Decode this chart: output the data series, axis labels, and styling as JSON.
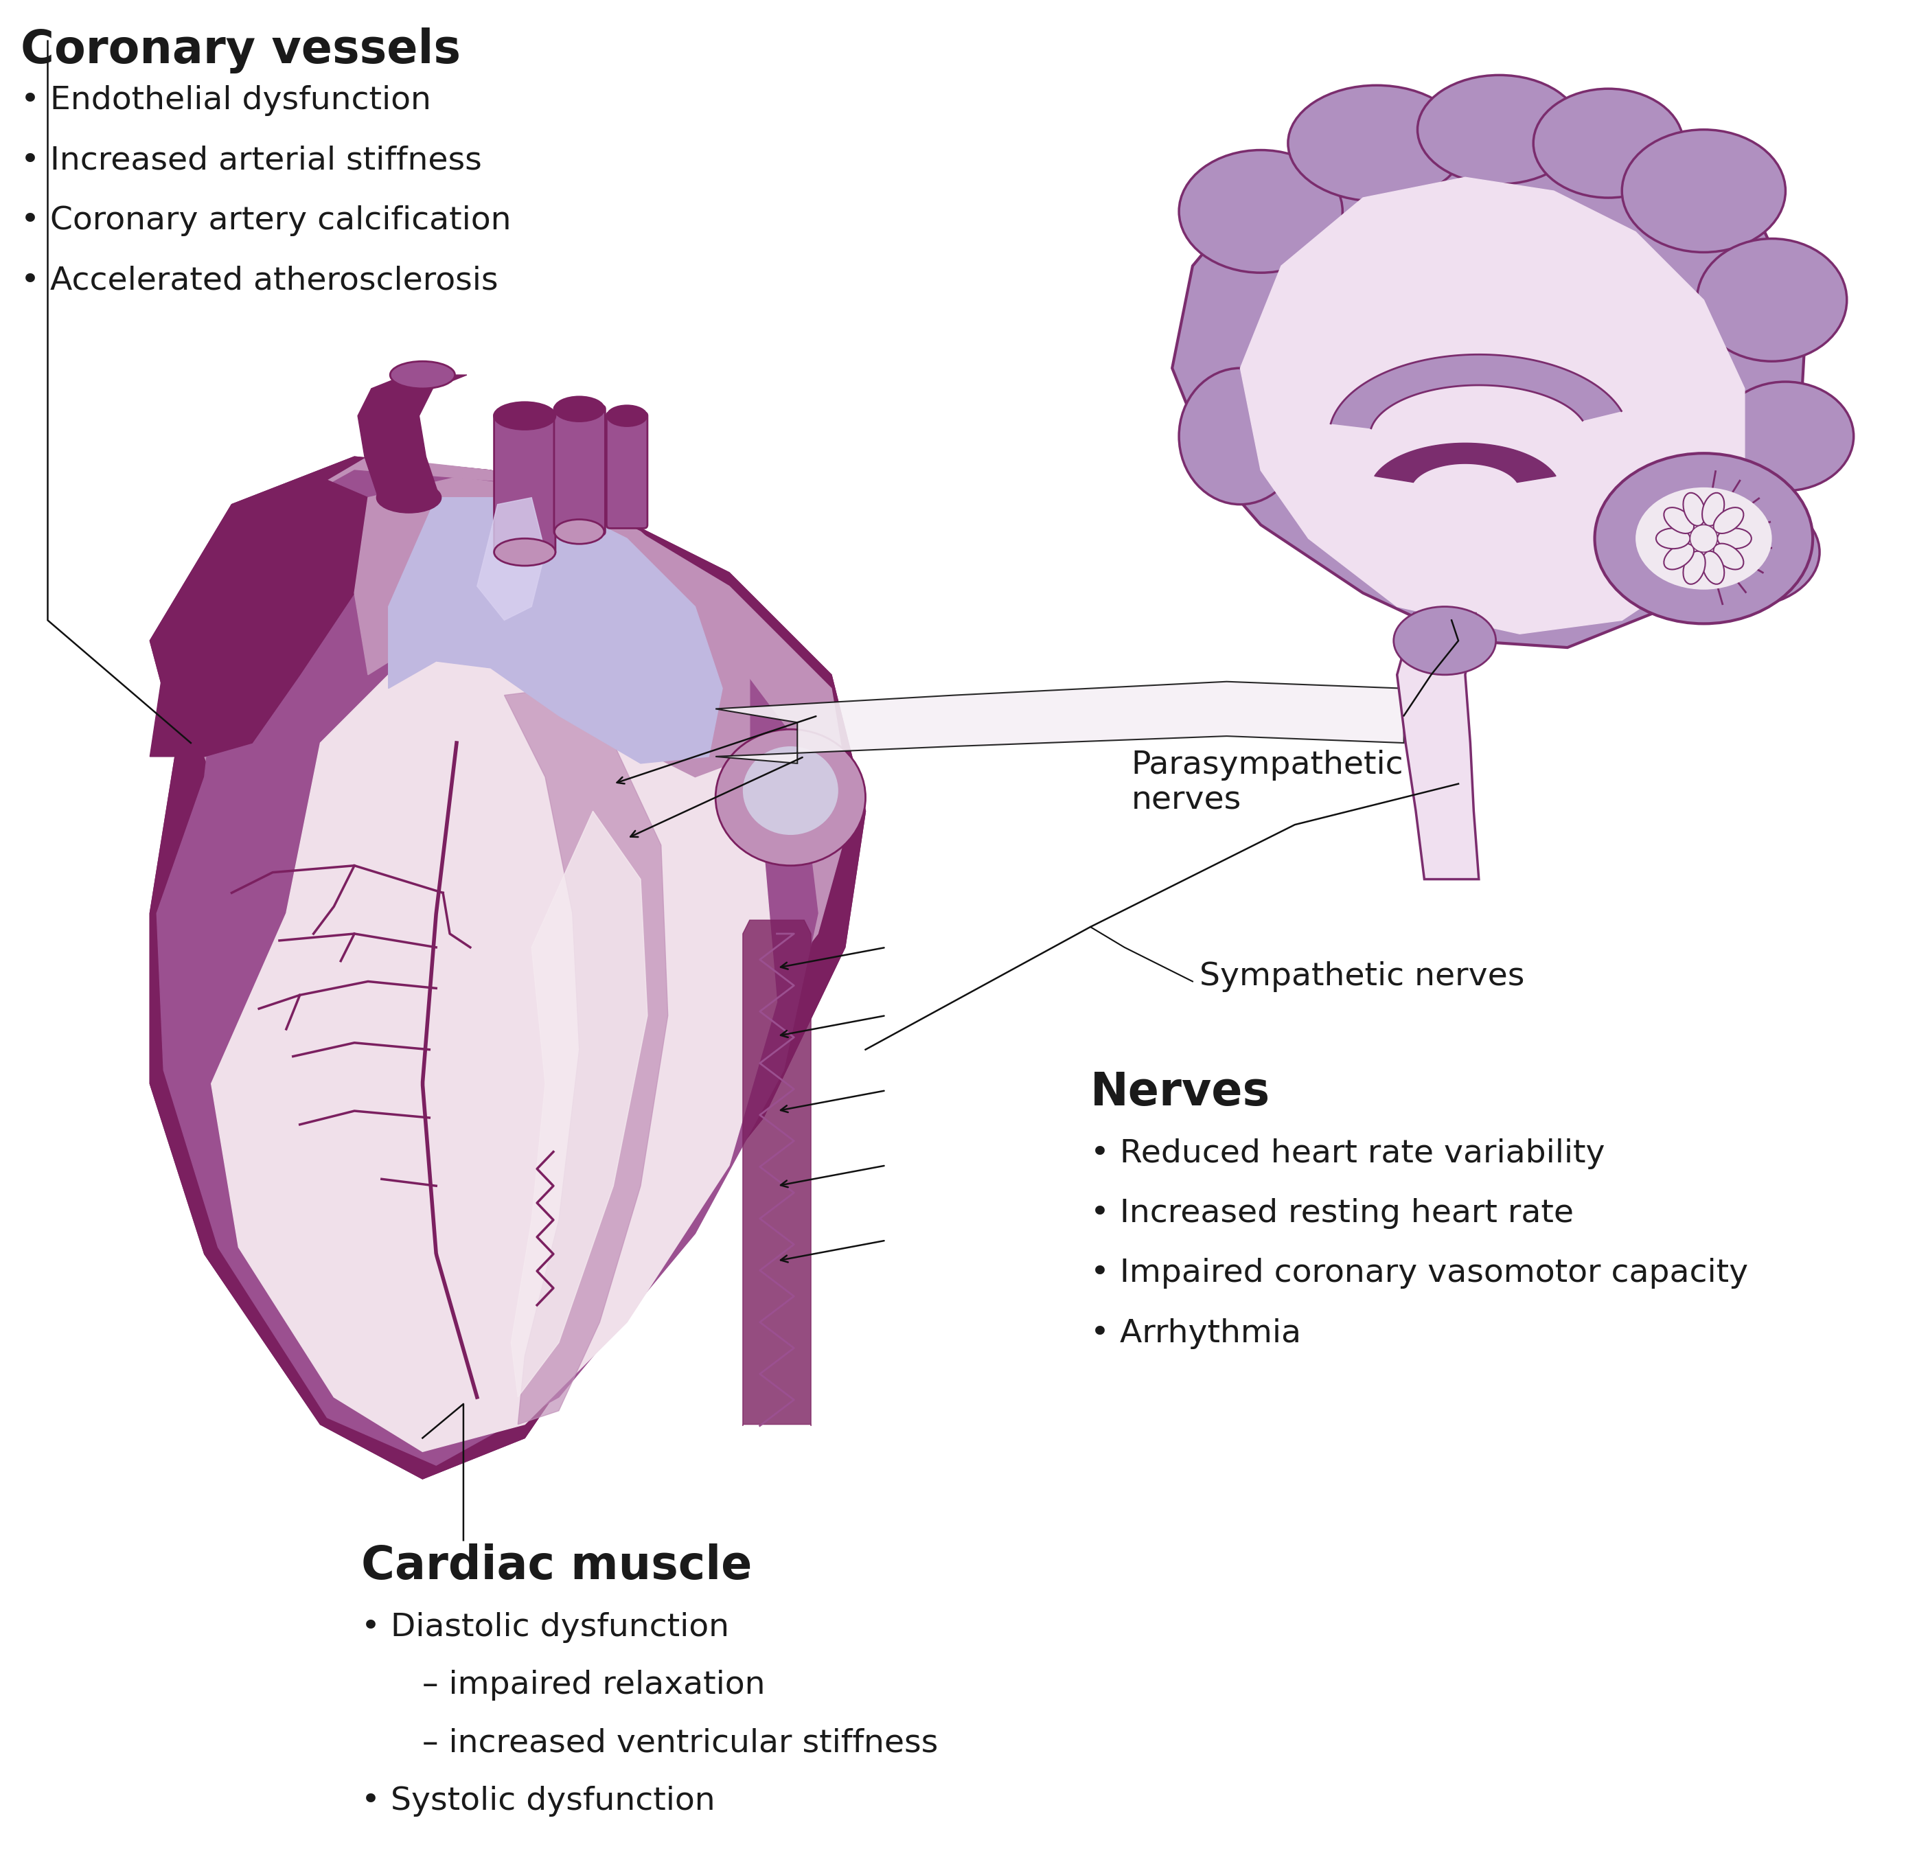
{
  "background_color": "#ffffff",
  "coronary_vessels_title": "Coronary vessels",
  "coronary_vessels_bullets": [
    "Endothelial dysfunction",
    "Increased arterial stiffness",
    "Coronary artery calcification",
    "Accelerated atherosclerosis"
  ],
  "cardiac_muscle_title": "Cardiac muscle",
  "cardiac_muscle_bullets": [
    "Diastolic dysfunction",
    "– impaired relaxation",
    "– increased ventricular stiffness",
    "Systolic dysfunction"
  ],
  "nerves_title": "Nerves",
  "nerves_bullets": [
    "Reduced heart rate variability",
    "Increased resting heart rate",
    "Impaired coronary vasomotor capacity",
    "Arrhythmia"
  ],
  "parasympathetic_label": "Parasympathetic\nnerves",
  "sympathetic_label": "Sympathetic nerves",
  "text_color": "#1a1a1a",
  "line_color": "#111111",
  "heart_outer_dark": "#7b2060",
  "heart_mid_purple": "#9b5090",
  "heart_light_purple": "#c090b8",
  "heart_pale": "#f0e0ea",
  "heart_cream": "#f5eaf0",
  "heart_lavender": "#b0a8d0",
  "heart_blue_purple": "#8080c0",
  "heart_vessels": "#a070a0",
  "heart_dark_vessels": "#7b2060",
  "brain_outer": "#b090c0",
  "brain_dark": "#7b2d6e",
  "brain_inner": "#f0e0f0",
  "brain_cream": "#f5eaf5",
  "cerebellum_inner": "#f0e8f0"
}
